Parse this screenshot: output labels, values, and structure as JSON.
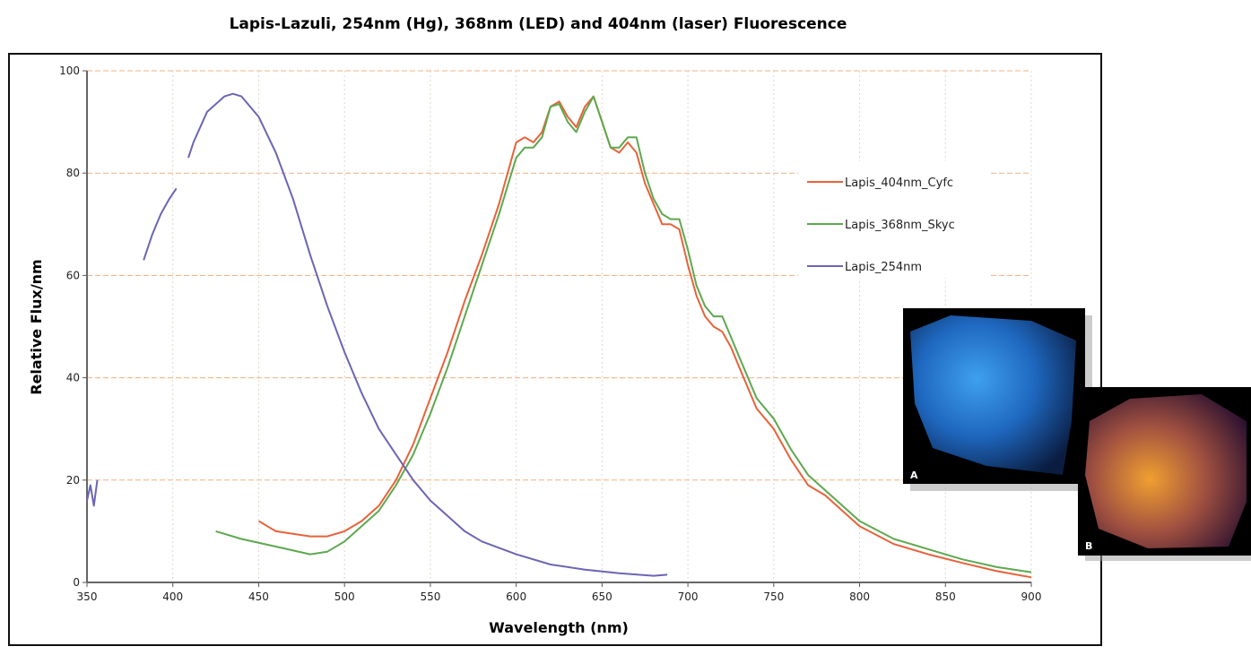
{
  "chart_data": {
    "type": "line",
    "title": "Lapis-Lazuli, 254nm (Hg), 368nm (LED) and 404nm (laser) Fluorescence",
    "x_label": "Wavelength (nm)",
    "y_label": "Relative Flux/nm",
    "xlim": [
      350,
      900
    ],
    "ylim": [
      0,
      100
    ],
    "xticks": [
      350,
      400,
      450,
      500,
      550,
      600,
      650,
      700,
      750,
      800,
      850,
      900
    ],
    "yticks": [
      0,
      20,
      40,
      60,
      80,
      100
    ],
    "grid": true,
    "annotations": [
      "A",
      "B"
    ],
    "series": [
      {
        "name": "Lapis_404nm_Cyfc",
        "color": "#e8623a",
        "x": [
          450,
          455,
          460,
          470,
          480,
          490,
          500,
          510,
          520,
          530,
          540,
          550,
          560,
          570,
          580,
          590,
          600,
          605,
          610,
          615,
          620,
          625,
          630,
          635,
          640,
          645,
          650,
          655,
          660,
          665,
          670,
          675,
          680,
          685,
          690,
          695,
          700,
          705,
          710,
          715,
          720,
          725,
          730,
          740,
          750,
          760,
          770,
          780,
          790,
          800,
          820,
          840,
          860,
          880,
          900
        ],
        "values": [
          12,
          11,
          10,
          9.5,
          9,
          9,
          10,
          12,
          15,
          20,
          27,
          36,
          45,
          55,
          64,
          74,
          86,
          87,
          86,
          88,
          93,
          94,
          91,
          89,
          93,
          95,
          90,
          85,
          84,
          86,
          84,
          78,
          74,
          70,
          70,
          69,
          62,
          56,
          52,
          50,
          49,
          46,
          42,
          34,
          30,
          24,
          19,
          17,
          14,
          11,
          7.5,
          5.5,
          3.8,
          2.2,
          1
        ]
      },
      {
        "name": "Lapis_368nm_Skyc",
        "color": "#5ea84f",
        "x": [
          425,
          440,
          460,
          480,
          490,
          500,
          510,
          520,
          530,
          540,
          550,
          560,
          570,
          580,
          590,
          600,
          605,
          610,
          615,
          620,
          625,
          630,
          635,
          640,
          645,
          650,
          655,
          660,
          665,
          670,
          675,
          680,
          685,
          690,
          695,
          700,
          705,
          710,
          715,
          720,
          725,
          730,
          740,
          750,
          760,
          770,
          780,
          790,
          800,
          820,
          840,
          860,
          880,
          900
        ],
        "values": [
          10,
          8.5,
          7,
          5.5,
          6,
          8,
          11,
          14,
          19,
          25,
          33,
          42,
          52,
          62,
          72,
          83,
          85,
          85,
          87,
          93,
          93.5,
          90,
          88,
          92,
          95,
          90,
          85,
          85,
          87,
          87,
          80,
          75,
          72,
          71,
          71,
          65,
          58,
          54,
          52,
          52,
          48,
          44,
          36,
          32,
          26,
          21,
          18,
          15,
          12,
          8.5,
          6.5,
          4.5,
          3,
          2
        ]
      },
      {
        "name": "Lapis_254nm",
        "color": "#6b65b5",
        "x": [
          350,
          352,
          354,
          356,
          370,
          383,
          388,
          393,
          398,
          402,
          405,
          409,
          412,
          420,
          430,
          435,
          440,
          450,
          460,
          470,
          480,
          490,
          500,
          510,
          520,
          530,
          540,
          550,
          560,
          570,
          580,
          600,
          620,
          640,
          660,
          680,
          688
        ],
        "values": [
          16,
          19,
          15,
          20,
          null,
          63,
          68,
          72,
          75,
          77,
          null,
          83,
          86,
          92,
          95,
          95.5,
          95,
          91,
          84,
          75,
          64,
          54,
          45,
          37,
          30,
          25,
          20,
          16,
          13,
          10,
          8,
          5.5,
          3.5,
          2.5,
          1.8,
          1.3,
          1.5
        ]
      }
    ]
  }
}
